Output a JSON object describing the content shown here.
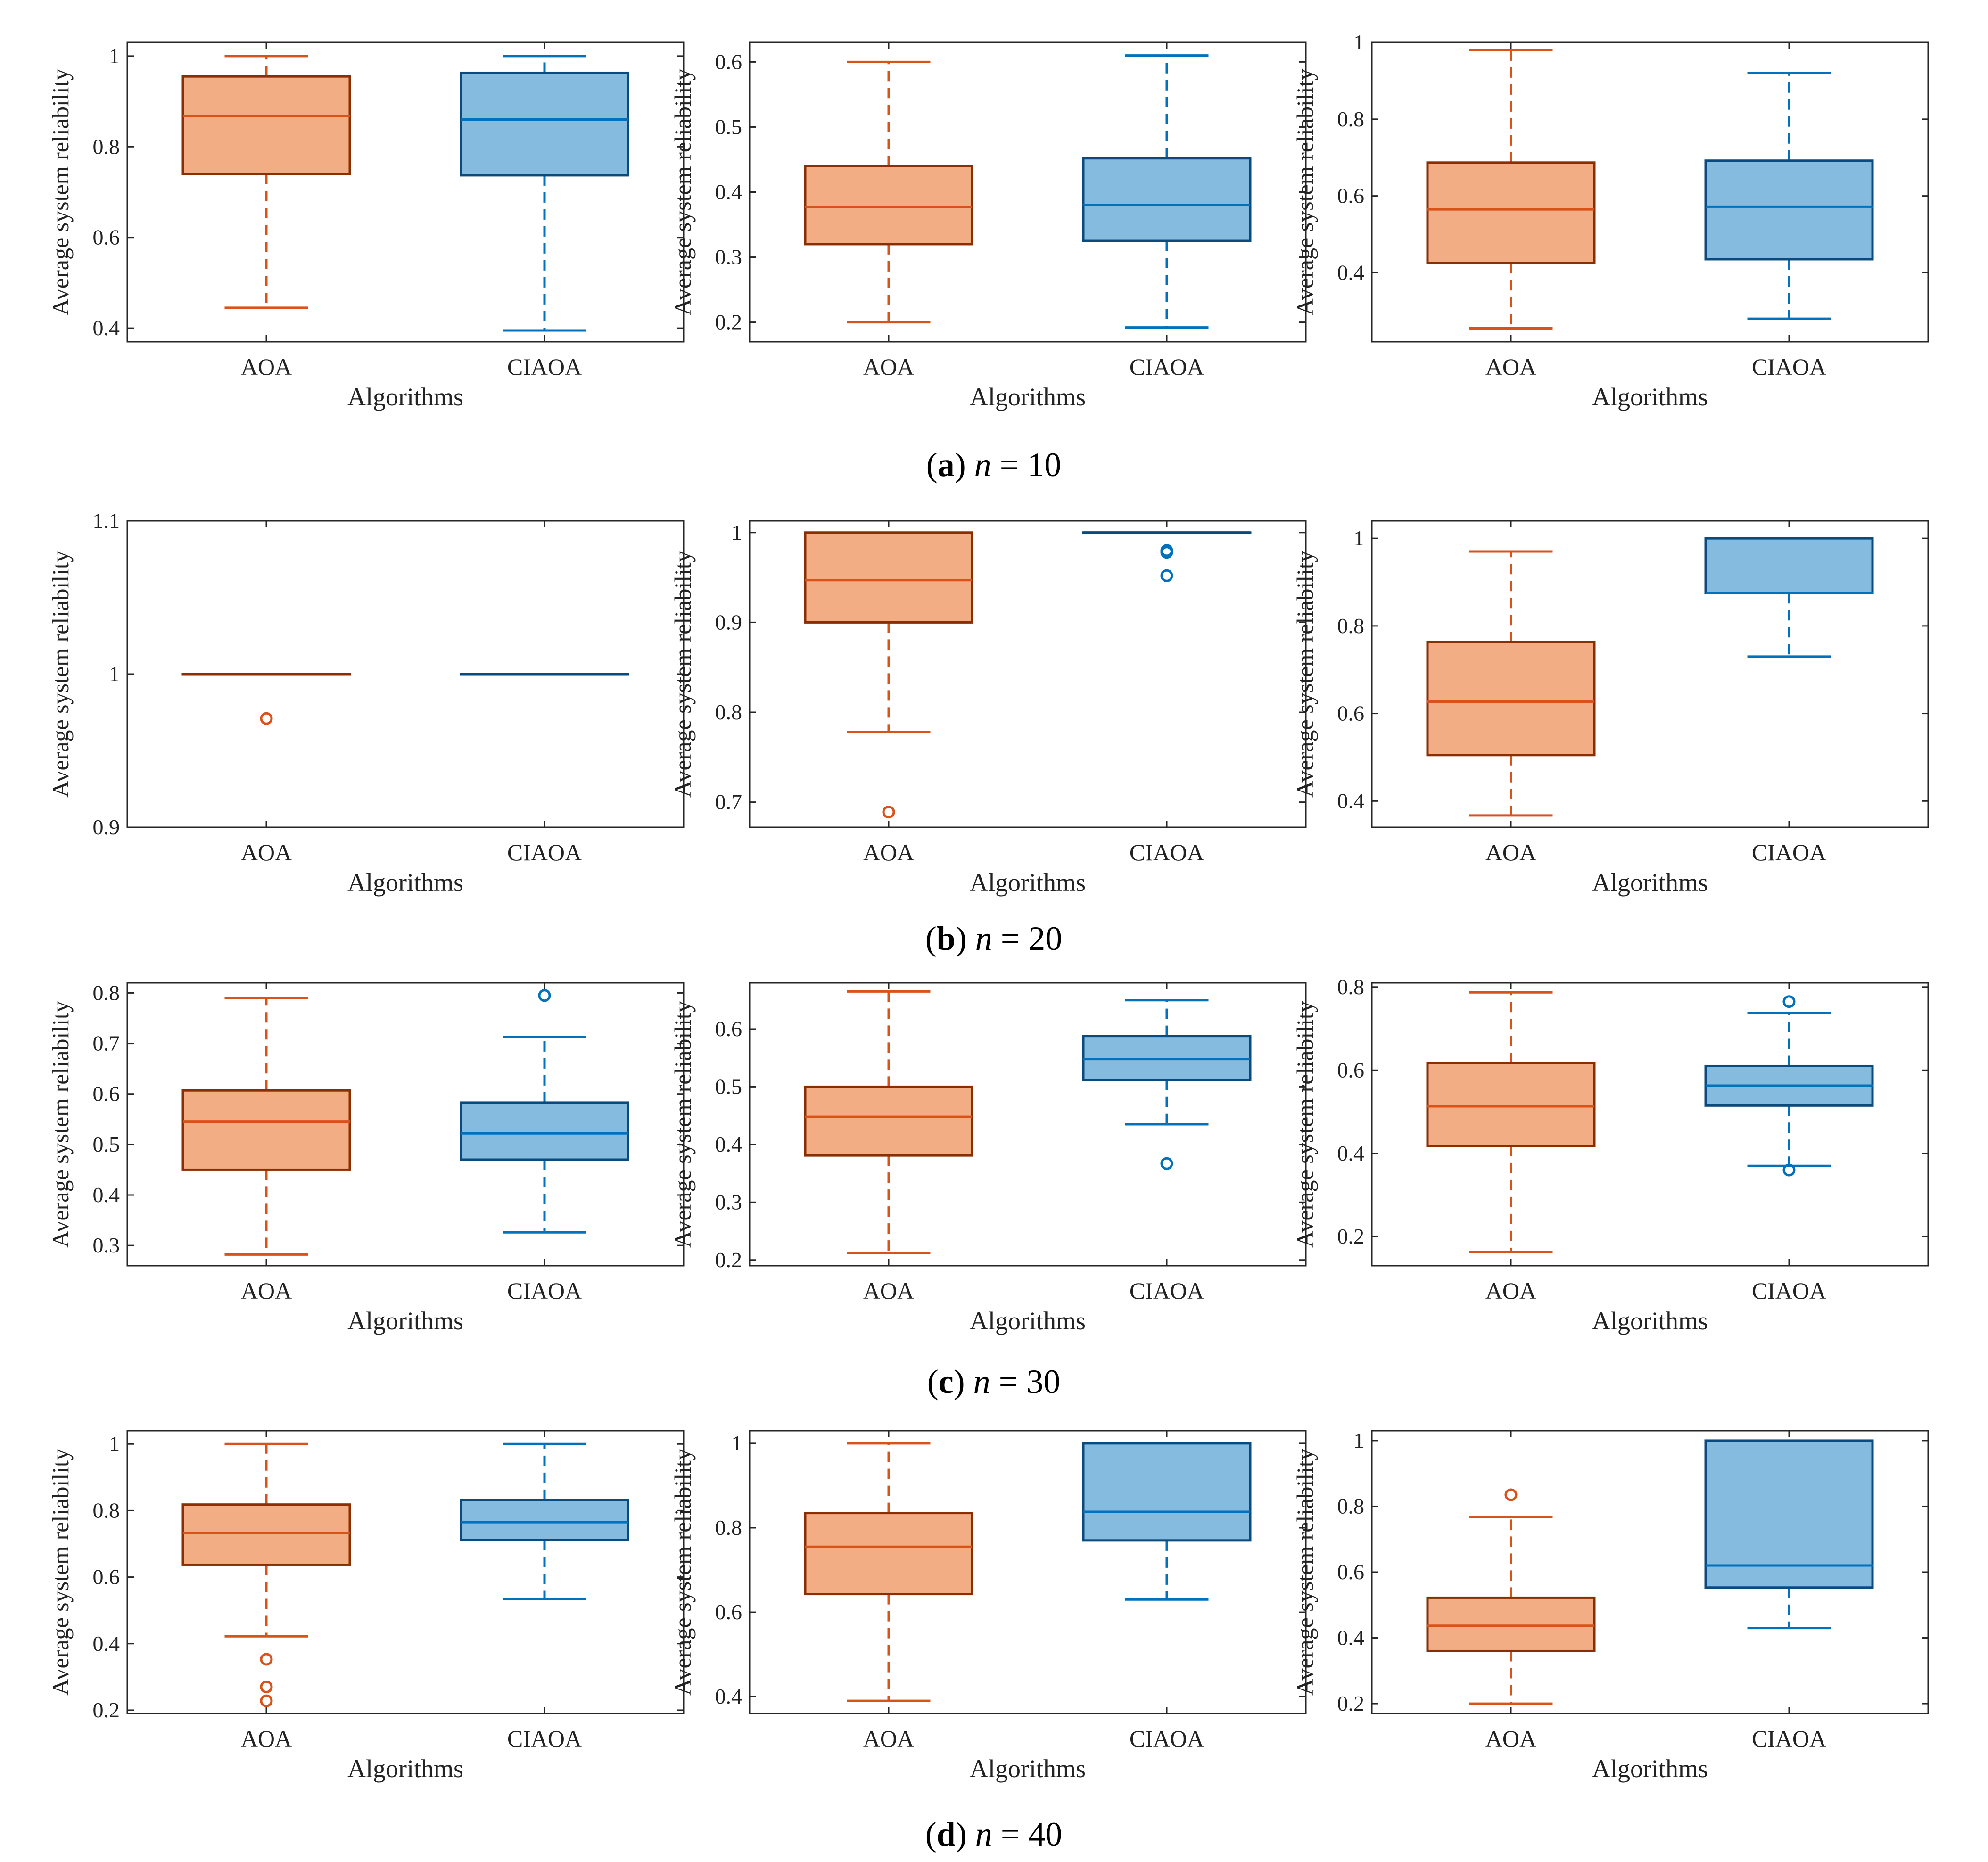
{
  "figure": {
    "colors": {
      "aoa_fill": "#F3AD85",
      "aoa_edge": "#8A2F04",
      "aoa_line": "#D95319",
      "ciaoa_fill": "#85BBDF",
      "ciaoa_edge": "#0B4A7D",
      "ciaoa_line": "#0072BD",
      "axis": "#262626"
    },
    "rows": [
      {
        "caption": {
          "letter": "a",
          "var": "n",
          "eq": " = 10"
        }
      },
      {
        "caption": {
          "letter": "b",
          "var": "n",
          "eq": " = 20"
        }
      },
      {
        "caption": {
          "letter": "c",
          "var": "n",
          "eq": " = 30"
        }
      },
      {
        "caption": {
          "letter": "d",
          "var": "n",
          "eq": " = 40"
        }
      }
    ]
  },
  "chart_data": [
    {
      "row": 0,
      "col": 0,
      "type": "box",
      "xlabel": "Algorithms",
      "ylabel": "Average system reliability",
      "ylim": [
        0.37,
        1.03
      ],
      "yticks": [
        "0.4",
        "0.6",
        "0.8",
        "1"
      ],
      "yticks_val": [
        0.4,
        0.6,
        0.8,
        1.0
      ],
      "categories": [
        "AOA",
        "CIAOA"
      ],
      "boxes": [
        {
          "name": "AOA",
          "min": 0.445,
          "q1": 0.74,
          "median": 0.868,
          "q3": 0.955,
          "max": 1.0,
          "outliers": []
        },
        {
          "name": "CIAOA",
          "min": 0.395,
          "q1": 0.737,
          "median": 0.86,
          "q3": 0.963,
          "max": 1.0,
          "outliers": []
        }
      ]
    },
    {
      "row": 0,
      "col": 1,
      "type": "box",
      "xlabel": "Algorithms",
      "ylabel": "Average system reliability",
      "ylim": [
        0.17,
        0.63
      ],
      "yticks": [
        "0.2",
        "0.3",
        "0.4",
        "0.5",
        "0.6"
      ],
      "yticks_val": [
        0.2,
        0.3,
        0.4,
        0.5,
        0.6
      ],
      "categories": [
        "AOA",
        "CIAOA"
      ],
      "boxes": [
        {
          "name": "AOA",
          "min": 0.2,
          "q1": 0.32,
          "median": 0.377,
          "q3": 0.44,
          "max": 0.6,
          "outliers": []
        },
        {
          "name": "CIAOA",
          "min": 0.192,
          "q1": 0.325,
          "median": 0.38,
          "q3": 0.452,
          "max": 0.61,
          "outliers": []
        }
      ]
    },
    {
      "row": 0,
      "col": 2,
      "type": "box",
      "xlabel": "Algorithms",
      "ylabel": "Average system reliability",
      "ylim": [
        0.22,
        1.0
      ],
      "yticks": [
        "0.4",
        "0.6",
        "0.8",
        "1"
      ],
      "yticks_val": [
        0.4,
        0.6,
        0.8,
        1.0
      ],
      "categories": [
        "AOA",
        "CIAOA"
      ],
      "boxes": [
        {
          "name": "AOA",
          "min": 0.255,
          "q1": 0.425,
          "median": 0.565,
          "q3": 0.687,
          "max": 0.98,
          "outliers": []
        },
        {
          "name": "CIAOA",
          "min": 0.28,
          "q1": 0.435,
          "median": 0.572,
          "q3": 0.692,
          "max": 0.92,
          "outliers": []
        }
      ]
    },
    {
      "row": 1,
      "col": 0,
      "type": "box",
      "xlabel": "Algorithms",
      "ylabel": "Average system reliability",
      "ylim": [
        0.9,
        1.1
      ],
      "yticks": [
        "0.9",
        "1",
        "1.1"
      ],
      "yticks_val": [
        0.9,
        1.0,
        1.1
      ],
      "categories": [
        "AOA",
        "CIAOA"
      ],
      "boxes": [
        {
          "name": "AOA",
          "min": 1.0,
          "q1": 1.0,
          "median": 1.0,
          "q3": 1.0,
          "max": 1.0,
          "outliers": [
            0.971
          ]
        },
        {
          "name": "CIAOA",
          "min": 1.0,
          "q1": 1.0,
          "median": 1.0,
          "q3": 1.0,
          "max": 1.0,
          "outliers": []
        }
      ]
    },
    {
      "row": 1,
      "col": 1,
      "type": "box",
      "xlabel": "Algorithms",
      "ylabel": "Average system reliability",
      "ylim": [
        0.672,
        1.013
      ],
      "yticks": [
        "0.7",
        "0.8",
        "0.9",
        "1"
      ],
      "yticks_val": [
        0.7,
        0.8,
        0.9,
        1.0
      ],
      "categories": [
        "AOA",
        "CIAOA"
      ],
      "boxes": [
        {
          "name": "AOA",
          "min": 0.778,
          "q1": 0.9,
          "median": 0.947,
          "q3": 1.0,
          "max": 1.0,
          "outliers": [
            0.689
          ]
        },
        {
          "name": "CIAOA",
          "min": 1.0,
          "q1": 1.0,
          "median": 1.0,
          "q3": 1.0,
          "max": 1.0,
          "outliers": [
            0.98,
            0.978,
            0.952
          ]
        }
      ]
    },
    {
      "row": 1,
      "col": 2,
      "type": "box",
      "xlabel": "Algorithms",
      "ylabel": "Average system reliability",
      "ylim": [
        0.34,
        1.04
      ],
      "yticks": [
        "0.4",
        "0.6",
        "0.8",
        "1"
      ],
      "yticks_val": [
        0.4,
        0.6,
        0.8,
        1.0
      ],
      "categories": [
        "AOA",
        "CIAOA"
      ],
      "boxes": [
        {
          "name": "AOA",
          "min": 0.367,
          "q1": 0.505,
          "median": 0.627,
          "q3": 0.763,
          "max": 0.97,
          "outliers": []
        },
        {
          "name": "CIAOA",
          "min": 0.73,
          "q1": 0.875,
          "median": 0.875,
          "q3": 1.0,
          "max": 1.0,
          "outliers": []
        }
      ]
    },
    {
      "row": 2,
      "col": 0,
      "type": "box",
      "xlabel": "Algorithms",
      "ylabel": "Average system reliability",
      "ylim": [
        0.26,
        0.82
      ],
      "yticks": [
        "0.3",
        "0.4",
        "0.5",
        "0.6",
        "0.7",
        "0.8"
      ],
      "yticks_val": [
        0.3,
        0.4,
        0.5,
        0.6,
        0.7,
        0.8
      ],
      "categories": [
        "AOA",
        "CIAOA"
      ],
      "boxes": [
        {
          "name": "AOA",
          "min": 0.282,
          "q1": 0.45,
          "median": 0.545,
          "q3": 0.607,
          "max": 0.79,
          "outliers": []
        },
        {
          "name": "CIAOA",
          "min": 0.326,
          "q1": 0.47,
          "median": 0.522,
          "q3": 0.583,
          "max": 0.713,
          "outliers": [
            0.795
          ]
        }
      ]
    },
    {
      "row": 2,
      "col": 1,
      "type": "box",
      "xlabel": "Algorithms",
      "ylabel": "Average system reliability",
      "ylim": [
        0.19,
        0.68
      ],
      "yticks": [
        "0.2",
        "0.3",
        "0.4",
        "0.5",
        "0.6"
      ],
      "yticks_val": [
        0.2,
        0.3,
        0.4,
        0.5,
        0.6
      ],
      "categories": [
        "AOA",
        "CIAOA"
      ],
      "boxes": [
        {
          "name": "AOA",
          "min": 0.212,
          "q1": 0.381,
          "median": 0.448,
          "q3": 0.5,
          "max": 0.665,
          "outliers": []
        },
        {
          "name": "CIAOA",
          "min": 0.435,
          "q1": 0.512,
          "median": 0.548,
          "q3": 0.588,
          "max": 0.65,
          "outliers": [
            0.367
          ]
        }
      ]
    },
    {
      "row": 2,
      "col": 2,
      "type": "box",
      "xlabel": "Algorithms",
      "ylabel": "Average system reliability",
      "ylim": [
        0.13,
        0.81
      ],
      "yticks": [
        "0.2",
        "0.4",
        "0.6",
        "0.8"
      ],
      "yticks_val": [
        0.2,
        0.4,
        0.6,
        0.8
      ],
      "categories": [
        "AOA",
        "CIAOA"
      ],
      "boxes": [
        {
          "name": "AOA",
          "min": 0.163,
          "q1": 0.418,
          "median": 0.513,
          "q3": 0.617,
          "max": 0.787,
          "outliers": []
        },
        {
          "name": "CIAOA",
          "min": 0.37,
          "q1": 0.515,
          "median": 0.563,
          "q3": 0.61,
          "max": 0.737,
          "outliers": [
            0.765,
            0.36
          ]
        }
      ]
    },
    {
      "row": 3,
      "col": 0,
      "type": "box",
      "xlabel": "Algorithms",
      "ylabel": "Average system reliability",
      "ylim": [
        0.19,
        1.04
      ],
      "yticks": [
        "0.2",
        "0.4",
        "0.6",
        "0.8",
        "1"
      ],
      "yticks_val": [
        0.2,
        0.4,
        0.6,
        0.8,
        1.0
      ],
      "categories": [
        "AOA",
        "CIAOA"
      ],
      "boxes": [
        {
          "name": "AOA",
          "min": 0.422,
          "q1": 0.637,
          "median": 0.733,
          "q3": 0.818,
          "max": 1.0,
          "outliers": [
            0.353,
            0.27,
            0.228
          ]
        },
        {
          "name": "CIAOA",
          "min": 0.535,
          "q1": 0.712,
          "median": 0.765,
          "q3": 0.832,
          "max": 1.0,
          "outliers": []
        }
      ]
    },
    {
      "row": 3,
      "col": 1,
      "type": "box",
      "xlabel": "Algorithms",
      "ylabel": "Average system reliability",
      "ylim": [
        0.36,
        1.03
      ],
      "yticks": [
        "0.4",
        "0.6",
        "0.8",
        "1"
      ],
      "yticks_val": [
        0.4,
        0.6,
        0.8,
        1.0
      ],
      "categories": [
        "AOA",
        "CIAOA"
      ],
      "boxes": [
        {
          "name": "AOA",
          "min": 0.39,
          "q1": 0.643,
          "median": 0.755,
          "q3": 0.835,
          "max": 1.0,
          "outliers": []
        },
        {
          "name": "CIAOA",
          "min": 0.63,
          "q1": 0.77,
          "median": 0.838,
          "q3": 1.0,
          "max": 1.0,
          "outliers": []
        }
      ]
    },
    {
      "row": 3,
      "col": 2,
      "type": "box",
      "xlabel": "Algorithms",
      "ylabel": "Average system reliability",
      "ylim": [
        0.17,
        1.03
      ],
      "yticks": [
        "0.2",
        "0.4",
        "0.6",
        "0.8",
        "1"
      ],
      "yticks_val": [
        0.2,
        0.4,
        0.6,
        0.8,
        1.0
      ],
      "categories": [
        "AOA",
        "CIAOA"
      ],
      "boxes": [
        {
          "name": "AOA",
          "min": 0.2,
          "q1": 0.36,
          "median": 0.437,
          "q3": 0.522,
          "max": 0.768,
          "outliers": [
            0.835
          ]
        },
        {
          "name": "CIAOA",
          "min": 0.43,
          "q1": 0.553,
          "median": 0.62,
          "q3": 1.0,
          "max": 1.0,
          "outliers": []
        }
      ]
    }
  ]
}
